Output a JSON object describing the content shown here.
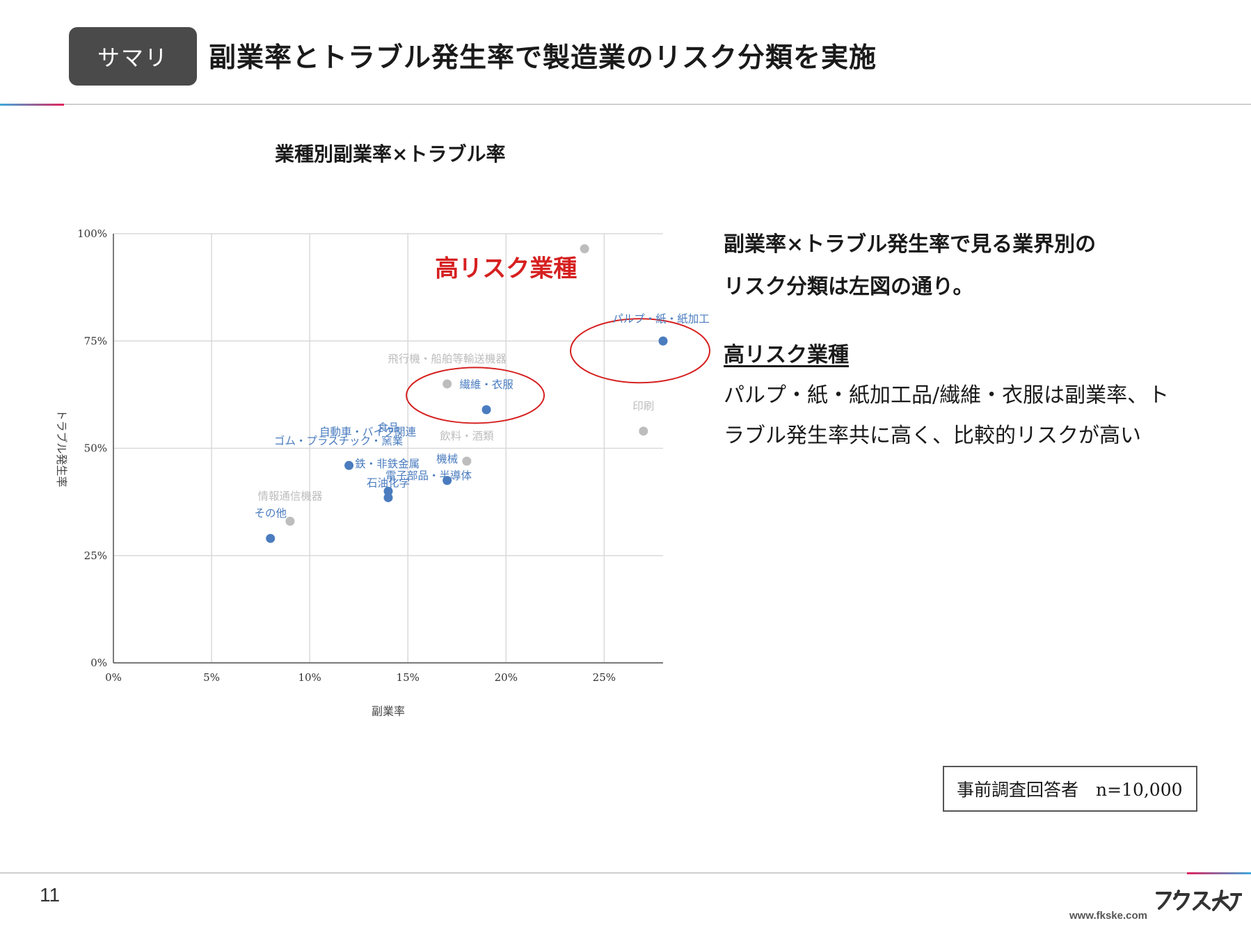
{
  "header": {
    "badge": "サマリ",
    "title": "副業率とトラブル発生率で製造業のリスク分類を実施"
  },
  "chart_data": {
    "type": "scatter",
    "title": "業種別副業率×トラブル率",
    "xlabel": "副業率",
    "ylabel": "トラブル発生率",
    "xlim": [
      0,
      28
    ],
    "ylim": [
      0,
      100
    ],
    "x_ticks": [
      "0%",
      "5%",
      "10%",
      "15%",
      "20%",
      "25%"
    ],
    "y_ticks": [
      "0%",
      "25%",
      "50%",
      "75%",
      "100%"
    ],
    "grid": true,
    "colors": {
      "highlight": "#4a7cbf",
      "other": "#bdbdbd",
      "annotation": "#d62020"
    },
    "annotation": "高リスク業種",
    "points": [
      {
        "label": "",
        "x": 24,
        "y": 96.5,
        "group": "other"
      },
      {
        "label": "パルプ・紙・紙加工",
        "x": 28,
        "y": 75,
        "group": "highlight"
      },
      {
        "label": "飛行機・船舶等輸送機器",
        "x": 17,
        "y": 65,
        "group": "other"
      },
      {
        "label": "繊維・衣服",
        "x": 19,
        "y": 59,
        "group": "highlight"
      },
      {
        "label": "印刷",
        "x": 27,
        "y": 54,
        "group": "other"
      },
      {
        "label": "飲料・酒類",
        "x": 18,
        "y": 47,
        "group": "other"
      },
      {
        "label": "機械",
        "x": 17,
        "y": 42.5,
        "group": "highlight"
      },
      {
        "label": "食品",
        "x": 14,
        "y": 40,
        "group": "highlight"
      },
      {
        "label": "自動車・バイク関連",
        "x": 12,
        "y": 46,
        "group": "highlight"
      },
      {
        "label": "ゴム・プラスチック・窯業",
        "x": 12,
        "y": 46,
        "group": "highlight"
      },
      {
        "label": "電子部品・半導体",
        "x": 14,
        "y": 40,
        "group": "highlight"
      },
      {
        "label": "鉄・非鉄金属",
        "x": 12,
        "y": 46,
        "group": "highlight"
      },
      {
        "label": "石油化学",
        "x": 14,
        "y": 38.5,
        "group": "highlight"
      },
      {
        "label": "情報通信機器",
        "x": 9,
        "y": 33,
        "group": "other"
      },
      {
        "label": "その他",
        "x": 8,
        "y": 29,
        "group": "highlight"
      }
    ]
  },
  "right": {
    "line1": "副業率×トラブル発生率で見る業界別の",
    "line2": "リスク分類は左図の通り。",
    "subheading": "高リスク業種",
    "body1": "パルプ・紙・紙加工品/繊維・衣服は副業率、ト",
    "body2": "ラブル発生率共に高く、比較的リスクが高い"
  },
  "note": "事前調査回答者　n=10,000",
  "footer": {
    "page_number": "11",
    "url": "www.fkske.com",
    "logo_text": "フクスケ"
  }
}
